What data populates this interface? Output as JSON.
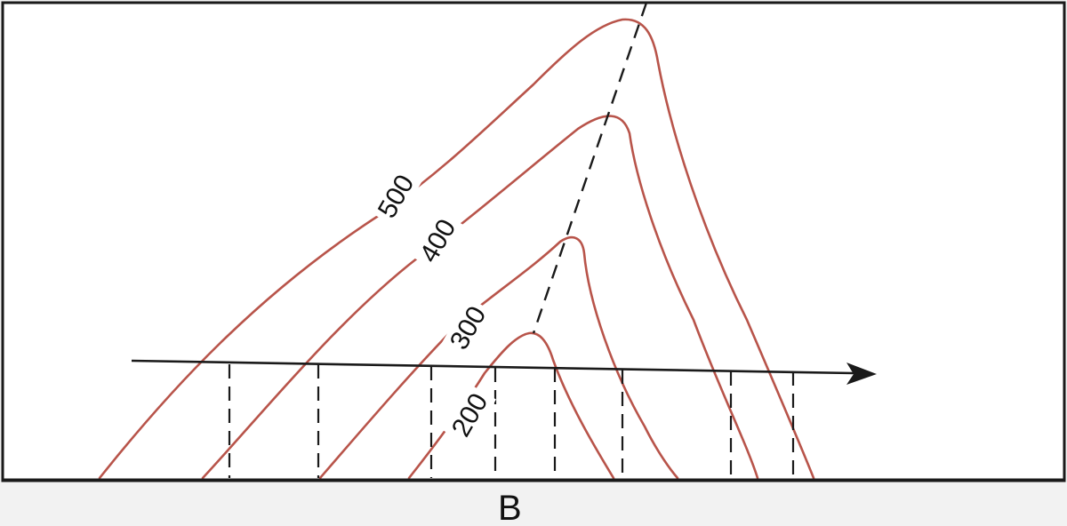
{
  "contours": [
    {
      "value": "500",
      "color": "#b8544a"
    },
    {
      "value": "400",
      "color": "#b8544a"
    },
    {
      "value": "300",
      "color": "#b8544a"
    },
    {
      "value": "200",
      "color": "#b8544a"
    }
  ],
  "point_label": "B"
}
